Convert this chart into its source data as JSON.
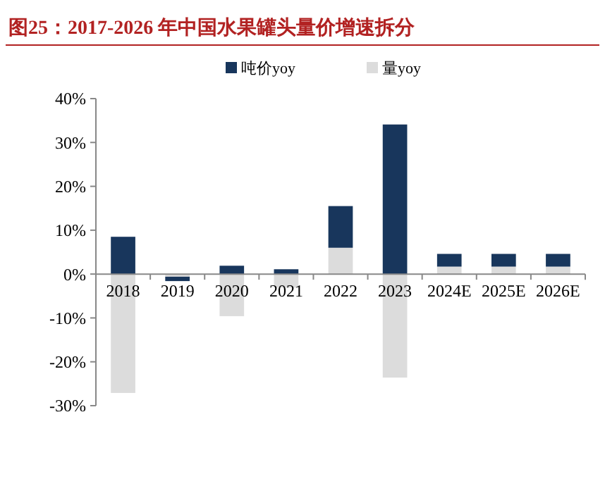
{
  "chart_data": {
    "type": "bar",
    "title": "图25：2017-2026 年中国水果罐头量价增速拆分",
    "stacked": true,
    "categories": [
      "2018",
      "2019",
      "2020",
      "2021",
      "2022",
      "2023",
      "2024E",
      "2025E",
      "2026E"
    ],
    "series": [
      {
        "name": "量yoy",
        "color": "#dcdcdc",
        "values": [
          -27.1,
          -0.6,
          -9.6,
          -3.1,
          6.0,
          -23.6,
          1.7,
          1.7,
          1.7
        ]
      },
      {
        "name": "吨价yoy",
        "color": "#18365c",
        "values": [
          8.5,
          -1.0,
          1.9,
          1.1,
          9.5,
          34.1,
          2.9,
          2.9,
          2.9
        ]
      }
    ],
    "ylim": [
      -30,
      40
    ],
    "yticks": [
      {
        "value": -30,
        "label": "-30%"
      },
      {
        "value": -20,
        "label": "-20%"
      },
      {
        "value": -10,
        "label": "-10%"
      },
      {
        "value": 0,
        "label": "0%"
      },
      {
        "value": 10,
        "label": "10%"
      },
      {
        "value": 20,
        "label": "20%"
      },
      {
        "value": 30,
        "label": "30%"
      },
      {
        "value": 40,
        "label": "40%"
      }
    ],
    "legend": "top",
    "grid": false
  }
}
